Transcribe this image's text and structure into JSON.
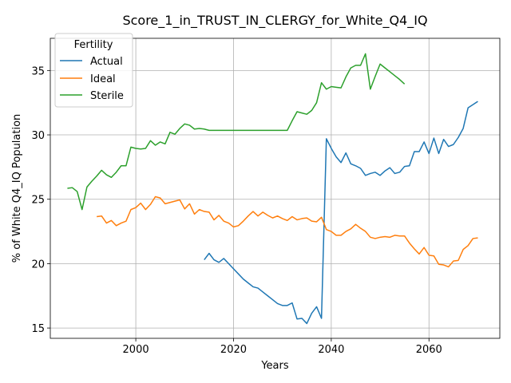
{
  "chart_data": {
    "type": "line",
    "title": "Score_1_in_TRUST_IN_CLERGY_for_White_Q4_IQ",
    "xlabel": "Years",
    "ylabel": "% of White Q4_IQ Population",
    "xlim": [
      1982.5,
      2074.5
    ],
    "ylim": [
      14.2,
      37.5
    ],
    "xticks": [
      2000,
      2020,
      2040,
      2060
    ],
    "yticks": [
      15,
      20,
      25,
      30,
      35
    ],
    "grid": true,
    "legend": {
      "title": "Fertility",
      "placement": "upper left"
    },
    "colors": {
      "Actual": "#1f77b4",
      "Ideal": "#ff7f0e",
      "Sterile": "#2ca02c"
    },
    "series": [
      {
        "name": "Actual",
        "x": [
          2014,
          2015,
          2016,
          2017,
          2018,
          2019,
          2020,
          2021,
          2022,
          2023,
          2024,
          2025,
          2026,
          2027,
          2028,
          2029,
          2030,
          2031,
          2032,
          2033,
          2034,
          2035,
          2036,
          2037,
          2038,
          2039,
          2040,
          2041,
          2042,
          2043,
          2044,
          2045,
          2046,
          2047,
          2048,
          2049,
          2050,
          2051,
          2052,
          2053,
          2054,
          2055,
          2056,
          2057,
          2058,
          2059,
          2060,
          2061,
          2062,
          2063,
          2064,
          2065,
          2066,
          2067,
          2068,
          2069,
          2070
        ],
        "values": [
          20.3,
          20.8,
          20.3,
          20.1,
          20.4,
          20.0,
          19.6,
          19.2,
          18.8,
          18.5,
          18.2,
          18.1,
          17.8,
          17.5,
          17.2,
          16.9,
          16.75,
          16.75,
          16.95,
          15.7,
          15.75,
          15.35,
          16.15,
          16.65,
          15.75,
          29.7,
          28.95,
          28.3,
          27.85,
          28.6,
          27.75,
          27.6,
          27.4,
          26.85,
          27.0,
          27.1,
          26.85,
          27.2,
          27.45,
          27.0,
          27.1,
          27.55,
          27.6,
          28.7,
          28.7,
          29.45,
          28.55,
          29.75,
          28.55,
          29.65,
          29.1,
          29.25,
          29.8,
          30.5,
          32.1,
          32.35,
          32.6
        ]
      },
      {
        "name": "Ideal",
        "x": [
          1992,
          1993,
          1994,
          1995,
          1996,
          1997,
          1998,
          1999,
          2000,
          2001,
          2002,
          2003,
          2004,
          2005,
          2006,
          2007,
          2008,
          2009,
          2010,
          2011,
          2012,
          2013,
          2014,
          2015,
          2016,
          2017,
          2018,
          2019,
          2020,
          2021,
          2022,
          2023,
          2024,
          2025,
          2026,
          2027,
          2028,
          2029,
          2030,
          2031,
          2032,
          2033,
          2034,
          2035,
          2036,
          2037,
          2038,
          2039,
          2040,
          2041,
          2042,
          2043,
          2044,
          2045,
          2046,
          2047,
          2048,
          2049,
          2050,
          2051,
          2052,
          2053,
          2054,
          2055,
          2056,
          2057,
          2058,
          2059,
          2060,
          2061,
          2062,
          2063,
          2064,
          2065,
          2066,
          2067,
          2068,
          2069,
          2070
        ],
        "values": [
          23.65,
          23.7,
          23.15,
          23.35,
          22.95,
          23.15,
          23.3,
          24.2,
          24.35,
          24.7,
          24.2,
          24.6,
          25.2,
          25.1,
          24.65,
          24.75,
          24.85,
          24.95,
          24.25,
          24.65,
          23.85,
          24.2,
          24.05,
          24.0,
          23.4,
          23.75,
          23.3,
          23.15,
          22.85,
          22.95,
          23.3,
          23.7,
          24.05,
          23.7,
          24.0,
          23.75,
          23.55,
          23.7,
          23.5,
          23.35,
          23.65,
          23.4,
          23.5,
          23.55,
          23.3,
          23.25,
          23.6,
          22.65,
          22.5,
          22.2,
          22.2,
          22.5,
          22.7,
          23.05,
          22.75,
          22.5,
          22.05,
          21.95,
          22.05,
          22.1,
          22.05,
          22.2,
          22.15,
          22.15,
          21.6,
          21.15,
          20.75,
          21.25,
          20.65,
          20.6,
          19.95,
          19.9,
          19.75,
          20.2,
          20.25,
          21.1,
          21.4,
          21.95,
          22.0
        ]
      },
      {
        "name": "Sterile",
        "x": [
          1986,
          1987,
          1988,
          1989,
          1990,
          1991,
          1992,
          1993,
          1994,
          1995,
          1996,
          1997,
          1998,
          1999,
          2000,
          2001,
          2002,
          2003,
          2004,
          2005,
          2006,
          2007,
          2008,
          2009,
          2010,
          2011,
          2012,
          2013,
          2014,
          2015,
          2016,
          2017,
          2018,
          2019,
          2020,
          2021,
          2022,
          2023,
          2024,
          2025,
          2026,
          2027,
          2028,
          2029,
          2030,
          2031,
          2032,
          2033,
          2034,
          2035,
          2036,
          2037,
          2038,
          2039,
          2040,
          2041,
          2042,
          2043,
          2044,
          2045,
          2046,
          2047,
          2048,
          2049,
          2050,
          2051,
          2052,
          2053,
          2054,
          2055
        ],
        "values": [
          25.85,
          25.9,
          25.6,
          24.2,
          25.95,
          26.4,
          26.8,
          27.25,
          26.9,
          26.7,
          27.1,
          27.6,
          27.6,
          29.05,
          28.95,
          28.9,
          28.95,
          29.55,
          29.2,
          29.45,
          29.3,
          30.2,
          30.05,
          30.5,
          30.85,
          30.75,
          30.45,
          30.5,
          30.45,
          30.35,
          30.35,
          30.35,
          30.35,
          30.35,
          30.35,
          30.35,
          30.35,
          30.35,
          30.35,
          30.35,
          30.35,
          30.35,
          30.35,
          30.35,
          30.35,
          30.35,
          31.1,
          31.8,
          31.7,
          31.6,
          31.9,
          32.5,
          34.05,
          33.55,
          33.75,
          33.7,
          33.65,
          34.5,
          35.2,
          35.4,
          35.4,
          36.3,
          33.55,
          34.55,
          35.5,
          35.2,
          34.9,
          34.6,
          34.3,
          33.95
        ]
      }
    ]
  }
}
